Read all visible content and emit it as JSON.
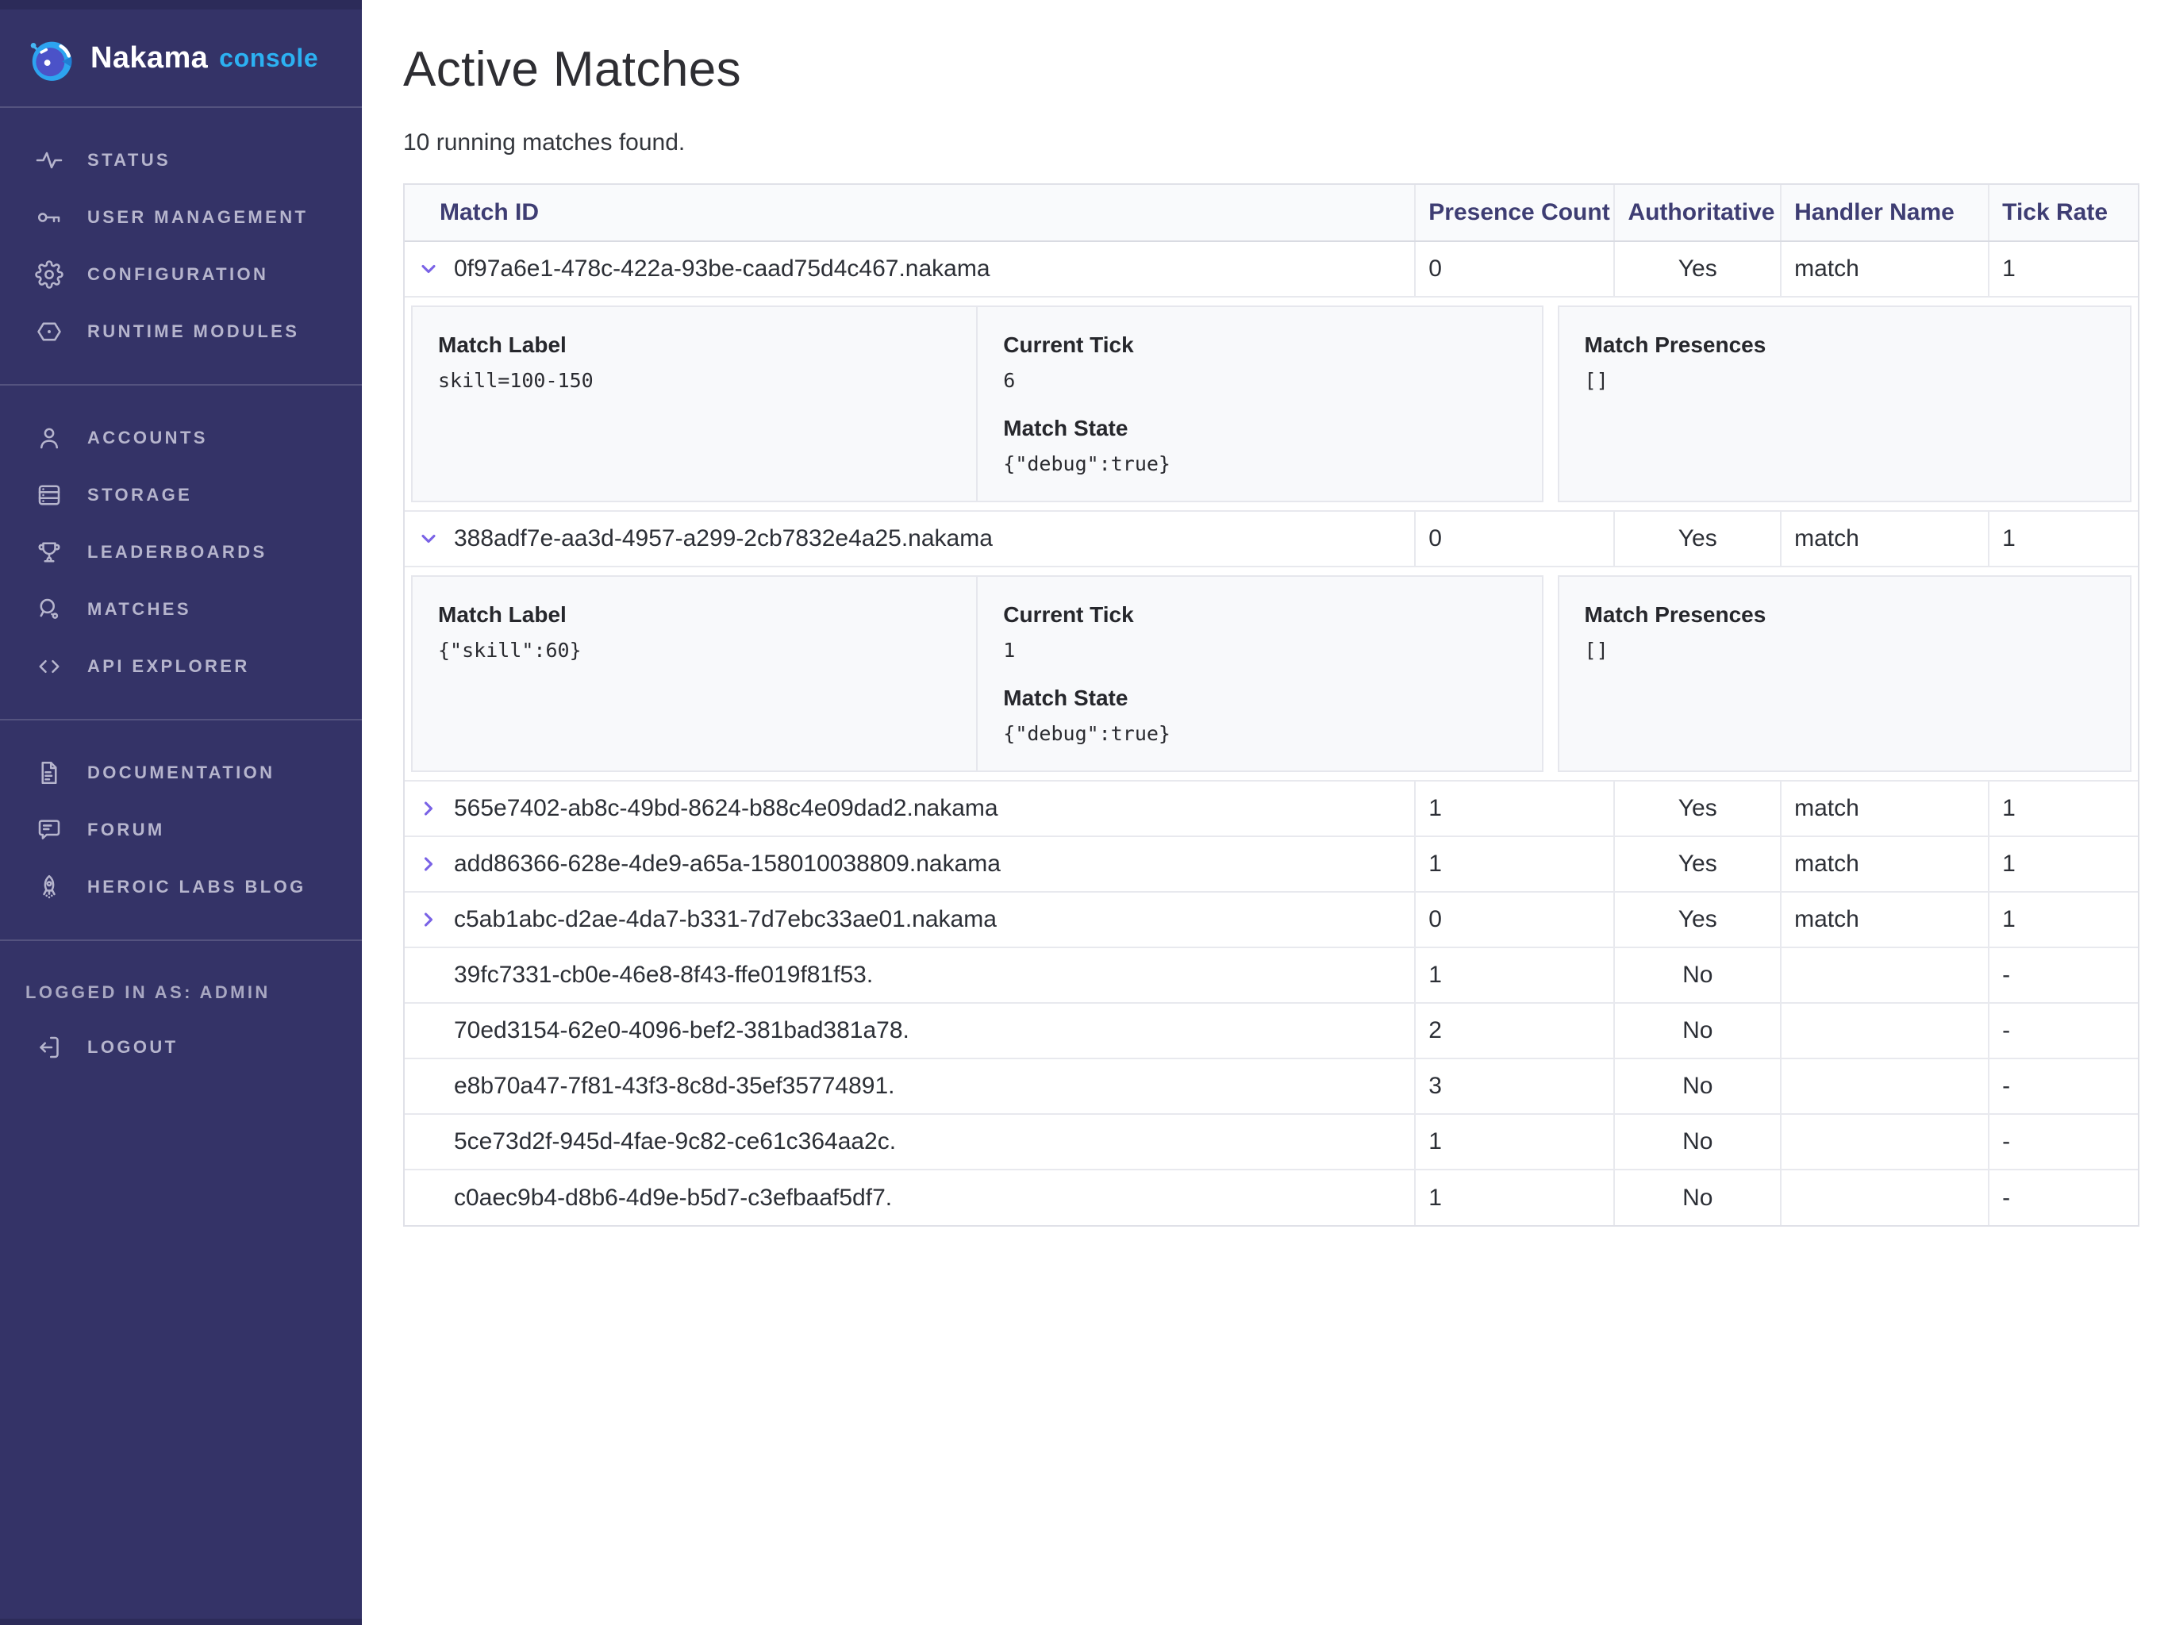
{
  "colors": {
    "accent-purple": "#7a63e6",
    "sidebar-bg": "#343367",
    "sidebar-text": "#b6b5cd",
    "brand-blue": "#2cb1f2",
    "header-text": "#3e3d73",
    "body-text": "#2c2f36",
    "border": "#e0e1e8",
    "row-border": "#e8e9ee",
    "panel-bg": "#f8f9fb",
    "header-row-bg": "#f9fafc"
  },
  "sidebar": {
    "brand": {
      "name": "Nakama",
      "suffix": "console",
      "icon": "nakama-logo-icon"
    },
    "groups": [
      {
        "items": [
          {
            "id": "status",
            "icon": "activity-icon",
            "label": "STATUS"
          },
          {
            "id": "user-management",
            "icon": "key-icon",
            "label": "USER MANAGEMENT"
          },
          {
            "id": "configuration",
            "icon": "gear-icon",
            "label": "CONFIGURATION"
          },
          {
            "id": "runtime-modules",
            "icon": "hexagon-icon",
            "label": "RUNTIME MODULES"
          }
        ]
      },
      {
        "items": [
          {
            "id": "accounts",
            "icon": "user-icon",
            "label": "ACCOUNTS"
          },
          {
            "id": "storage",
            "icon": "server-icon",
            "label": "STORAGE"
          },
          {
            "id": "leaderboards",
            "icon": "trophy-icon",
            "label": "LEADERBOARDS"
          },
          {
            "id": "matches",
            "icon": "paddle-icon",
            "label": "MATCHES"
          },
          {
            "id": "api-explorer",
            "icon": "code-icon",
            "label": "API EXPLORER"
          }
        ]
      },
      {
        "items": [
          {
            "id": "documentation",
            "icon": "document-icon",
            "label": "DOCUMENTATION"
          },
          {
            "id": "forum",
            "icon": "chat-icon",
            "label": "FORUM"
          },
          {
            "id": "heroic-labs-blog",
            "icon": "rocket-icon",
            "label": "HEROIC LABS BLOG"
          }
        ]
      }
    ],
    "logged_in_label": "LOGGED IN AS: ADMIN",
    "logout": {
      "id": "logout",
      "icon": "logout-icon",
      "label": "LOGOUT"
    }
  },
  "header": {
    "title": "Active Matches",
    "subtitle": "10 running matches found."
  },
  "table": {
    "columns": [
      "Match ID",
      "Presence Count",
      "Authoritative",
      "Handler Name",
      "Tick Rate"
    ],
    "detail_labels": {
      "match_label": "Match Label",
      "current_tick": "Current Tick",
      "match_state": "Match State",
      "match_presences": "Match Presences"
    },
    "rows": [
      {
        "match_id": "0f97a6e1-478c-422a-93be-caad75d4c467.nakama",
        "presence_count": "0",
        "authoritative": "Yes",
        "handler_name": "match",
        "tick_rate": "1",
        "chevron": "down",
        "expanded": true,
        "details": {
          "match_label": "skill=100-150",
          "current_tick": "6",
          "match_state": "{\"debug\":true}",
          "match_presences": "[]"
        }
      },
      {
        "match_id": "388adf7e-aa3d-4957-a299-2cb7832e4a25.nakama",
        "presence_count": "0",
        "authoritative": "Yes",
        "handler_name": "match",
        "tick_rate": "1",
        "chevron": "down",
        "expanded": true,
        "details": {
          "match_label": "{\"skill\":60}",
          "current_tick": "1",
          "match_state": "{\"debug\":true}",
          "match_presences": "[]"
        }
      },
      {
        "match_id": "565e7402-ab8c-49bd-8624-b88c4e09dad2.nakama",
        "presence_count": "1",
        "authoritative": "Yes",
        "handler_name": "match",
        "tick_rate": "1",
        "chevron": "right",
        "expanded": false
      },
      {
        "match_id": "add86366-628e-4de9-a65a-158010038809.nakama",
        "presence_count": "1",
        "authoritative": "Yes",
        "handler_name": "match",
        "tick_rate": "1",
        "chevron": "right",
        "expanded": false
      },
      {
        "match_id": "c5ab1abc-d2ae-4da7-b331-7d7ebc33ae01.nakama",
        "presence_count": "0",
        "authoritative": "Yes",
        "handler_name": "match",
        "tick_rate": "1",
        "chevron": "right",
        "expanded": false
      },
      {
        "match_id": "39fc7331-cb0e-46e8-8f43-ffe019f81f53.",
        "presence_count": "1",
        "authoritative": "No",
        "handler_name": "",
        "tick_rate": "-",
        "chevron": null,
        "expanded": false
      },
      {
        "match_id": "70ed3154-62e0-4096-bef2-381bad381a78.",
        "presence_count": "2",
        "authoritative": "No",
        "handler_name": "",
        "tick_rate": "-",
        "chevron": null,
        "expanded": false
      },
      {
        "match_id": "e8b70a47-7f81-43f3-8c8d-35ef35774891.",
        "presence_count": "3",
        "authoritative": "No",
        "handler_name": "",
        "tick_rate": "-",
        "chevron": null,
        "expanded": false
      },
      {
        "match_id": "5ce73d2f-945d-4fae-9c82-ce61c364aa2c.",
        "presence_count": "1",
        "authoritative": "No",
        "handler_name": "",
        "tick_rate": "-",
        "chevron": null,
        "expanded": false
      },
      {
        "match_id": "c0aec9b4-d8b6-4d9e-b5d7-c3efbaaf5df7.",
        "presence_count": "1",
        "authoritative": "No",
        "handler_name": "",
        "tick_rate": "-",
        "chevron": null,
        "expanded": false
      }
    ]
  }
}
